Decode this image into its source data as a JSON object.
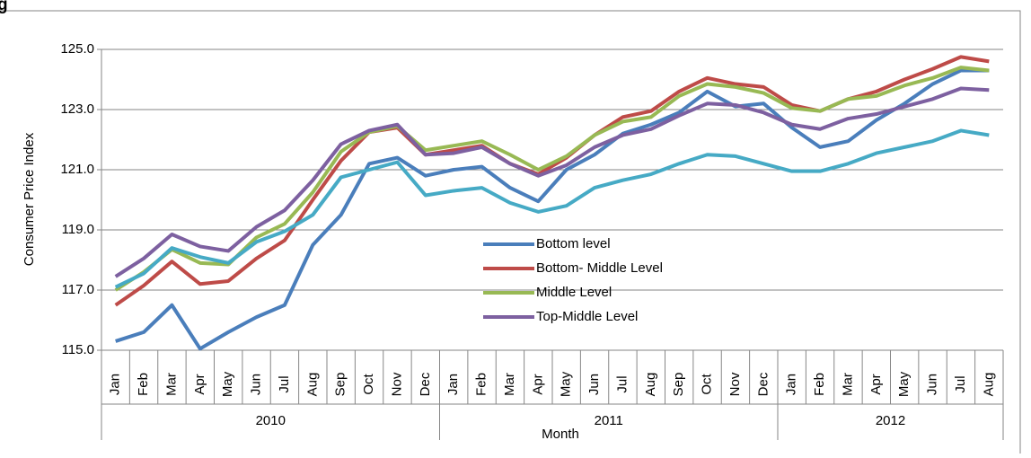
{
  "chart_data": {
    "type": "line",
    "title": "g",
    "y_label": "Consumer Price Index",
    "x_label": "Month",
    "category_groups": [
      {
        "label": "2010",
        "categories": [
          "Jan",
          "Feb",
          "Mar",
          "Apr",
          "May",
          "Jun",
          "Jul",
          "Aug",
          "Sep",
          "Oct",
          "Nov",
          "Dec"
        ]
      },
      {
        "label": "2011",
        "categories": [
          "Jan",
          "Feb",
          "Mar",
          "Apr",
          "May",
          "Jun",
          "Jul",
          "Aug",
          "Sep",
          "Oct",
          "Nov",
          "Dec"
        ]
      },
      {
        "label": "2012",
        "categories": [
          "Jan",
          "Feb",
          "Mar",
          "Apr",
          "May",
          "Jun",
          "Jul",
          "Aug"
        ]
      }
    ],
    "ylim": [
      115,
      125
    ],
    "yticks": [
      {
        "value": 115,
        "label": "115.0"
      },
      {
        "value": 117,
        "label": "117.0"
      },
      {
        "value": 119,
        "label": "119.0"
      },
      {
        "value": 121,
        "label": "121.0"
      },
      {
        "value": 123,
        "label": "123.0"
      },
      {
        "value": 125,
        "label": "125.0"
      }
    ],
    "grid": true,
    "legend": "center",
    "series": [
      {
        "name": "Bottom level",
        "color": "#4a7ebb",
        "values": [
          115.3,
          115.6,
          116.5,
          115.05,
          115.6,
          116.1,
          116.5,
          118.5,
          119.5,
          121.2,
          121.4,
          120.8,
          121.0,
          121.1,
          120.4,
          119.95,
          121.0,
          121.5,
          122.2,
          122.5,
          122.9,
          123.6,
          123.1,
          123.2,
          122.4,
          121.75,
          121.95,
          122.65,
          123.2,
          123.85,
          124.3,
          124.3
        ]
      },
      {
        "name": "Bottom- Middle  Level",
        "color": "#be4b48",
        "values": [
          116.5,
          117.15,
          117.95,
          117.2,
          117.3,
          118.05,
          118.65,
          120.0,
          121.3,
          122.25,
          122.4,
          121.5,
          121.65,
          121.8,
          121.2,
          120.85,
          121.4,
          122.15,
          122.75,
          122.95,
          123.6,
          124.05,
          123.85,
          123.75,
          123.15,
          122.95,
          123.35,
          123.6,
          124.0,
          124.35,
          124.75,
          124.6
        ]
      },
      {
        "name": "Middle Level",
        "color": "#98b954",
        "values": [
          117.0,
          117.6,
          118.35,
          117.9,
          117.85,
          118.75,
          119.2,
          120.25,
          121.6,
          122.25,
          122.45,
          121.65,
          121.8,
          121.95,
          121.5,
          121.0,
          121.45,
          122.15,
          122.6,
          122.75,
          123.45,
          123.85,
          123.75,
          123.55,
          123.05,
          122.95,
          123.35,
          123.45,
          123.8,
          124.05,
          124.4,
          124.3
        ]
      },
      {
        "name": "Top-Middle Level",
        "color": "#7d60a0",
        "values": [
          117.45,
          118.05,
          118.85,
          118.45,
          118.3,
          119.1,
          119.65,
          120.65,
          121.85,
          122.3,
          122.5,
          121.5,
          121.55,
          121.75,
          121.2,
          120.8,
          121.15,
          121.75,
          122.15,
          122.35,
          122.8,
          123.2,
          123.15,
          122.9,
          122.5,
          122.35,
          122.7,
          122.85,
          123.1,
          123.35,
          123.7,
          123.65
        ]
      },
      {
        "color": "#46aac5",
        "values": [
          117.1,
          117.55,
          118.4,
          118.1,
          117.9,
          118.6,
          118.95,
          119.5,
          120.75,
          121.0,
          121.25,
          120.15,
          120.3,
          120.4,
          119.9,
          119.6,
          119.8,
          120.4,
          120.65,
          120.85,
          121.2,
          121.5,
          121.45,
          121.2,
          120.95,
          120.95,
          121.2,
          121.55,
          121.75,
          121.95,
          122.3,
          122.15
        ]
      }
    ]
  }
}
